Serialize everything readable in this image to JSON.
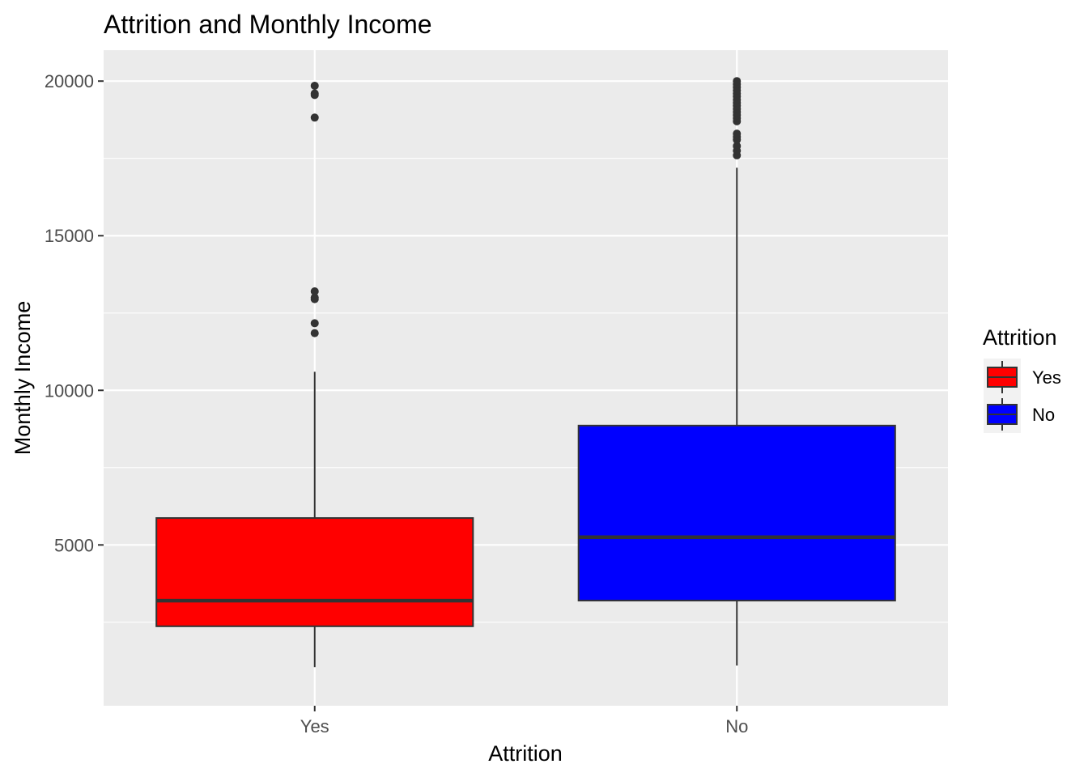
{
  "chart_data": {
    "type": "boxplot",
    "title": "Attrition and Monthly Income",
    "xlabel": "Attrition",
    "ylabel": "Monthly Income",
    "ylim": [
      -200,
      21000
    ],
    "yticks": [
      5000,
      10000,
      15000,
      20000
    ],
    "yticks_labels": [
      "5000",
      "10000",
      "15000",
      "20000"
    ],
    "y_minor_ticks": [
      2500,
      7500,
      12500,
      17500
    ],
    "grid": true,
    "legend_position": "right",
    "categories": [
      "Yes",
      "No"
    ],
    "series": [
      {
        "name": "Yes",
        "color": "#ff0000",
        "whisker_low": 1050,
        "q1": 2370,
        "median": 3200,
        "q3": 5870,
        "whisker_high": 10600,
        "outliers": [
          11850,
          12170,
          12950,
          13000,
          13200,
          18820,
          19550,
          19600,
          19850
        ]
      },
      {
        "name": "No",
        "color": "#0000ff",
        "whisker_low": 1100,
        "q1": 3200,
        "median": 5250,
        "q3": 8860,
        "whisker_high": 17200,
        "outliers": [
          17600,
          17750,
          17900,
          18100,
          18200,
          18300,
          18700,
          18800,
          18900,
          19000,
          19100,
          19200,
          19300,
          19400,
          19500,
          19600,
          19700,
          19800,
          19900,
          20000
        ]
      }
    ],
    "legend": {
      "title": "Attrition",
      "items": [
        {
          "label": "Yes",
          "color": "#ff0000"
        },
        {
          "label": "No",
          "color": "#0000ff"
        }
      ]
    }
  }
}
